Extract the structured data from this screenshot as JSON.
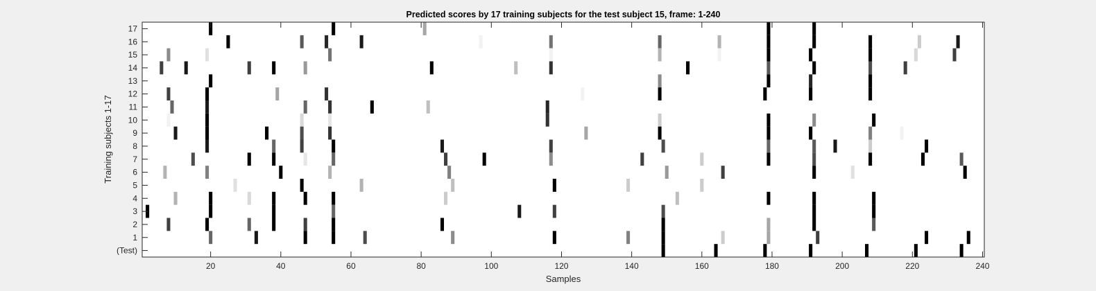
{
  "chart_data": {
    "type": "heatmap",
    "title": "Predicted scores by 17 training subjects for the test subject 15, frame: 1-240",
    "xlabel": "Samples",
    "ylabel": "Training subjects 1-17",
    "xlim": [
      1,
      240
    ],
    "x_ticks": [
      20,
      40,
      60,
      80,
      100,
      120,
      140,
      160,
      180,
      200,
      220,
      240
    ],
    "rows": [
      "17",
      "16",
      "15",
      "14",
      "13",
      "12",
      "11",
      "10",
      "9",
      "8",
      "7",
      "6",
      "5",
      "4",
      "3",
      "2",
      "1",
      "(Test)"
    ],
    "colormap": "gray (black = high score, white = zero)",
    "background_color": "#ffffff",
    "cells": [
      {
        "row": "17",
        "x": 20,
        "v": 1.0
      },
      {
        "row": "17",
        "x": 55,
        "v": 1.0
      },
      {
        "row": "17",
        "x": 81,
        "v": 0.35
      },
      {
        "row": "17",
        "x": 179,
        "v": 1.0
      },
      {
        "row": "17",
        "x": 192,
        "v": 1.0
      },
      {
        "row": "16",
        "x": 25,
        "v": 1.0
      },
      {
        "row": "16",
        "x": 46,
        "v": 0.65
      },
      {
        "row": "16",
        "x": 53,
        "v": 0.85
      },
      {
        "row": "16",
        "x": 63,
        "v": 0.9
      },
      {
        "row": "16",
        "x": 97,
        "v": 0.05
      },
      {
        "row": "16",
        "x": 117,
        "v": 0.55
      },
      {
        "row": "16",
        "x": 148,
        "v": 0.6
      },
      {
        "row": "16",
        "x": 165,
        "v": 0.3
      },
      {
        "row": "16",
        "x": 179,
        "v": 1.0
      },
      {
        "row": "16",
        "x": 192,
        "v": 1.0
      },
      {
        "row": "16",
        "x": 208,
        "v": 1.0
      },
      {
        "row": "16",
        "x": 222,
        "v": 0.2
      },
      {
        "row": "16",
        "x": 233,
        "v": 0.9
      },
      {
        "row": "15",
        "x": 8,
        "v": 0.45
      },
      {
        "row": "15",
        "x": 19,
        "v": 0.12
      },
      {
        "row": "15",
        "x": 54,
        "v": 0.55
      },
      {
        "row": "15",
        "x": 117,
        "v": 0.05
      },
      {
        "row": "15",
        "x": 148,
        "v": 0.3
      },
      {
        "row": "15",
        "x": 165,
        "v": 0.05
      },
      {
        "row": "15",
        "x": 179,
        "v": 1.0
      },
      {
        "row": "15",
        "x": 191,
        "v": 1.0
      },
      {
        "row": "15",
        "x": 208,
        "v": 1.0
      },
      {
        "row": "15",
        "x": 221,
        "v": 0.15
      },
      {
        "row": "15",
        "x": 232,
        "v": 0.75
      },
      {
        "row": "14",
        "x": 6,
        "v": 0.75
      },
      {
        "row": "14",
        "x": 13,
        "v": 0.9
      },
      {
        "row": "14",
        "x": 31,
        "v": 0.75
      },
      {
        "row": "14",
        "x": 38,
        "v": 1.0
      },
      {
        "row": "14",
        "x": 47,
        "v": 0.4
      },
      {
        "row": "14",
        "x": 83,
        "v": 1.0
      },
      {
        "row": "14",
        "x": 107,
        "v": 0.25
      },
      {
        "row": "14",
        "x": 117,
        "v": 0.8
      },
      {
        "row": "14",
        "x": 156,
        "v": 1.0
      },
      {
        "row": "14",
        "x": 179,
        "v": 0.65
      },
      {
        "row": "14",
        "x": 192,
        "v": 1.0
      },
      {
        "row": "14",
        "x": 208,
        "v": 0.7
      },
      {
        "row": "14",
        "x": 218,
        "v": 0.75
      },
      {
        "row": "13",
        "x": 20,
        "v": 1.0
      },
      {
        "row": "13",
        "x": 148,
        "v": 0.45
      },
      {
        "row": "13",
        "x": 179,
        "v": 1.0
      },
      {
        "row": "13",
        "x": 191,
        "v": 0.85
      },
      {
        "row": "13",
        "x": 208,
        "v": 1.0
      },
      {
        "row": "12",
        "x": 8,
        "v": 0.75
      },
      {
        "row": "12",
        "x": 19,
        "v": 1.0
      },
      {
        "row": "12",
        "x": 39,
        "v": 0.35
      },
      {
        "row": "12",
        "x": 53,
        "v": 0.8
      },
      {
        "row": "12",
        "x": 126,
        "v": 0.05
      },
      {
        "row": "12",
        "x": 148,
        "v": 1.0
      },
      {
        "row": "12",
        "x": 178,
        "v": 1.0
      },
      {
        "row": "12",
        "x": 191,
        "v": 1.0
      },
      {
        "row": "12",
        "x": 208,
        "v": 1.0
      },
      {
        "row": "11",
        "x": 9,
        "v": 0.6
      },
      {
        "row": "11",
        "x": 19,
        "v": 0.9
      },
      {
        "row": "11",
        "x": 47,
        "v": 0.6
      },
      {
        "row": "11",
        "x": 54,
        "v": 0.8
      },
      {
        "row": "11",
        "x": 66,
        "v": 1.0
      },
      {
        "row": "11",
        "x": 82,
        "v": 0.25
      },
      {
        "row": "11",
        "x": 116,
        "v": 0.85
      },
      {
        "row": "10",
        "x": 8,
        "v": 0.05
      },
      {
        "row": "10",
        "x": 19,
        "v": 1.0
      },
      {
        "row": "10",
        "x": 46,
        "v": 0.15
      },
      {
        "row": "10",
        "x": 54,
        "v": 0.1
      },
      {
        "row": "10",
        "x": 116,
        "v": 0.8
      },
      {
        "row": "10",
        "x": 148,
        "v": 0.2
      },
      {
        "row": "10",
        "x": 179,
        "v": 1.0
      },
      {
        "row": "10",
        "x": 192,
        "v": 0.45
      },
      {
        "row": "10",
        "x": 209,
        "v": 1.0
      },
      {
        "row": "9",
        "x": 10,
        "v": 0.9
      },
      {
        "row": "9",
        "x": 19,
        "v": 1.0
      },
      {
        "row": "9",
        "x": 36,
        "v": 1.0
      },
      {
        "row": "9",
        "x": 46,
        "v": 0.7
      },
      {
        "row": "9",
        "x": 54,
        "v": 0.8
      },
      {
        "row": "9",
        "x": 127,
        "v": 0.35
      },
      {
        "row": "9",
        "x": 148,
        "v": 1.0
      },
      {
        "row": "9",
        "x": 179,
        "v": 1.0
      },
      {
        "row": "9",
        "x": 191,
        "v": 1.0
      },
      {
        "row": "9",
        "x": 208,
        "v": 0.5
      },
      {
        "row": "9",
        "x": 217,
        "v": 0.05
      },
      {
        "row": "8",
        "x": 19,
        "v": 0.9
      },
      {
        "row": "8",
        "x": 38,
        "v": 0.6
      },
      {
        "row": "8",
        "x": 46,
        "v": 0.75
      },
      {
        "row": "8",
        "x": 55,
        "v": 1.0
      },
      {
        "row": "8",
        "x": 86,
        "v": 0.9
      },
      {
        "row": "8",
        "x": 117,
        "v": 0.75
      },
      {
        "row": "8",
        "x": 149,
        "v": 0.7
      },
      {
        "row": "8",
        "x": 179,
        "v": 0.6
      },
      {
        "row": "8",
        "x": 192,
        "v": 0.65
      },
      {
        "row": "8",
        "x": 198,
        "v": 0.9
      },
      {
        "row": "8",
        "x": 208,
        "v": 0.2
      },
      {
        "row": "8",
        "x": 224,
        "v": 1.0
      },
      {
        "row": "7",
        "x": 15,
        "v": 0.7
      },
      {
        "row": "7",
        "x": 31,
        "v": 1.0
      },
      {
        "row": "7",
        "x": 38,
        "v": 1.0
      },
      {
        "row": "7",
        "x": 47,
        "v": 0.1
      },
      {
        "row": "7",
        "x": 55,
        "v": 0.6
      },
      {
        "row": "7",
        "x": 87,
        "v": 0.75
      },
      {
        "row": "7",
        "x": 98,
        "v": 1.0
      },
      {
        "row": "7",
        "x": 117,
        "v": 0.45
      },
      {
        "row": "7",
        "x": 143,
        "v": 0.75
      },
      {
        "row": "7",
        "x": 160,
        "v": 0.2
      },
      {
        "row": "7",
        "x": 179,
        "v": 1.0
      },
      {
        "row": "7",
        "x": 192,
        "v": 0.7
      },
      {
        "row": "7",
        "x": 208,
        "v": 1.0
      },
      {
        "row": "7",
        "x": 223,
        "v": 1.0
      },
      {
        "row": "7",
        "x": 234,
        "v": 0.65
      },
      {
        "row": "6",
        "x": 7,
        "v": 0.3
      },
      {
        "row": "6",
        "x": 19,
        "v": 0.5
      },
      {
        "row": "6",
        "x": 40,
        "v": 1.0
      },
      {
        "row": "6",
        "x": 54,
        "v": 0.3
      },
      {
        "row": "6",
        "x": 88,
        "v": 0.5
      },
      {
        "row": "6",
        "x": 150,
        "v": 0.4
      },
      {
        "row": "6",
        "x": 166,
        "v": 0.75
      },
      {
        "row": "6",
        "x": 192,
        "v": 1.0
      },
      {
        "row": "6",
        "x": 203,
        "v": 0.12
      },
      {
        "row": "6",
        "x": 235,
        "v": 1.0
      },
      {
        "row": "5",
        "x": 27,
        "v": 0.12
      },
      {
        "row": "5",
        "x": 46,
        "v": 1.0
      },
      {
        "row": "5",
        "x": 63,
        "v": 0.3
      },
      {
        "row": "5",
        "x": 89,
        "v": 0.25
      },
      {
        "row": "5",
        "x": 118,
        "v": 1.0
      },
      {
        "row": "5",
        "x": 139,
        "v": 0.2
      },
      {
        "row": "5",
        "x": 160,
        "v": 0.2
      },
      {
        "row": "4",
        "x": 10,
        "v": 0.3
      },
      {
        "row": "4",
        "x": 20,
        "v": 1.0
      },
      {
        "row": "4",
        "x": 31,
        "v": 0.15
      },
      {
        "row": "4",
        "x": 38,
        "v": 1.0
      },
      {
        "row": "4",
        "x": 47,
        "v": 1.0
      },
      {
        "row": "4",
        "x": 55,
        "v": 1.0
      },
      {
        "row": "4",
        "x": 87,
        "v": 0.2
      },
      {
        "row": "4",
        "x": 153,
        "v": 0.25
      },
      {
        "row": "4",
        "x": 179,
        "v": 1.0
      },
      {
        "row": "4",
        "x": 192,
        "v": 1.0
      },
      {
        "row": "4",
        "x": 209,
        "v": 1.0
      },
      {
        "row": "3",
        "x": 2,
        "v": 1.0
      },
      {
        "row": "3",
        "x": 20,
        "v": 1.0
      },
      {
        "row": "3",
        "x": 38,
        "v": 1.0
      },
      {
        "row": "3",
        "x": 55,
        "v": 0.6
      },
      {
        "row": "3",
        "x": 108,
        "v": 0.9
      },
      {
        "row": "3",
        "x": 118,
        "v": 0.75
      },
      {
        "row": "3",
        "x": 149,
        "v": 0.7
      },
      {
        "row": "3",
        "x": 192,
        "v": 1.0
      },
      {
        "row": "3",
        "x": 209,
        "v": 1.0
      },
      {
        "row": "2",
        "x": 8,
        "v": 0.75
      },
      {
        "row": "2",
        "x": 19,
        "v": 1.0
      },
      {
        "row": "2",
        "x": 31,
        "v": 0.6
      },
      {
        "row": "2",
        "x": 38,
        "v": 1.0
      },
      {
        "row": "2",
        "x": 47,
        "v": 0.75
      },
      {
        "row": "2",
        "x": 55,
        "v": 1.0
      },
      {
        "row": "2",
        "x": 86,
        "v": 1.0
      },
      {
        "row": "2",
        "x": 149,
        "v": 1.0
      },
      {
        "row": "2",
        "x": 179,
        "v": 0.35
      },
      {
        "row": "2",
        "x": 192,
        "v": 1.0
      },
      {
        "row": "2",
        "x": 209,
        "v": 0.65
      },
      {
        "row": "1",
        "x": 20,
        "v": 0.6
      },
      {
        "row": "1",
        "x": 33,
        "v": 0.9
      },
      {
        "row": "1",
        "x": 47,
        "v": 1.0
      },
      {
        "row": "1",
        "x": 55,
        "v": 1.0
      },
      {
        "row": "1",
        "x": 64,
        "v": 0.7
      },
      {
        "row": "1",
        "x": 89,
        "v": 0.45
      },
      {
        "row": "1",
        "x": 118,
        "v": 1.0
      },
      {
        "row": "1",
        "x": 139,
        "v": 0.5
      },
      {
        "row": "1",
        "x": 149,
        "v": 1.0
      },
      {
        "row": "1",
        "x": 166,
        "v": 0.2
      },
      {
        "row": "1",
        "x": 179,
        "v": 0.35
      },
      {
        "row": "1",
        "x": 193,
        "v": 0.75
      },
      {
        "row": "1",
        "x": 224,
        "v": 1.0
      },
      {
        "row": "1",
        "x": 236,
        "v": 1.0
      },
      {
        "row": "(Test)",
        "x": 149,
        "v": 1.0
      },
      {
        "row": "(Test)",
        "x": 164,
        "v": 1.0
      },
      {
        "row": "(Test)",
        "x": 178,
        "v": 1.0
      },
      {
        "row": "(Test)",
        "x": 191,
        "v": 1.0
      },
      {
        "row": "(Test)",
        "x": 207,
        "v": 1.0
      },
      {
        "row": "(Test)",
        "x": 221,
        "v": 1.0
      },
      {
        "row": "(Test)",
        "x": 234,
        "v": 1.0
      }
    ]
  }
}
